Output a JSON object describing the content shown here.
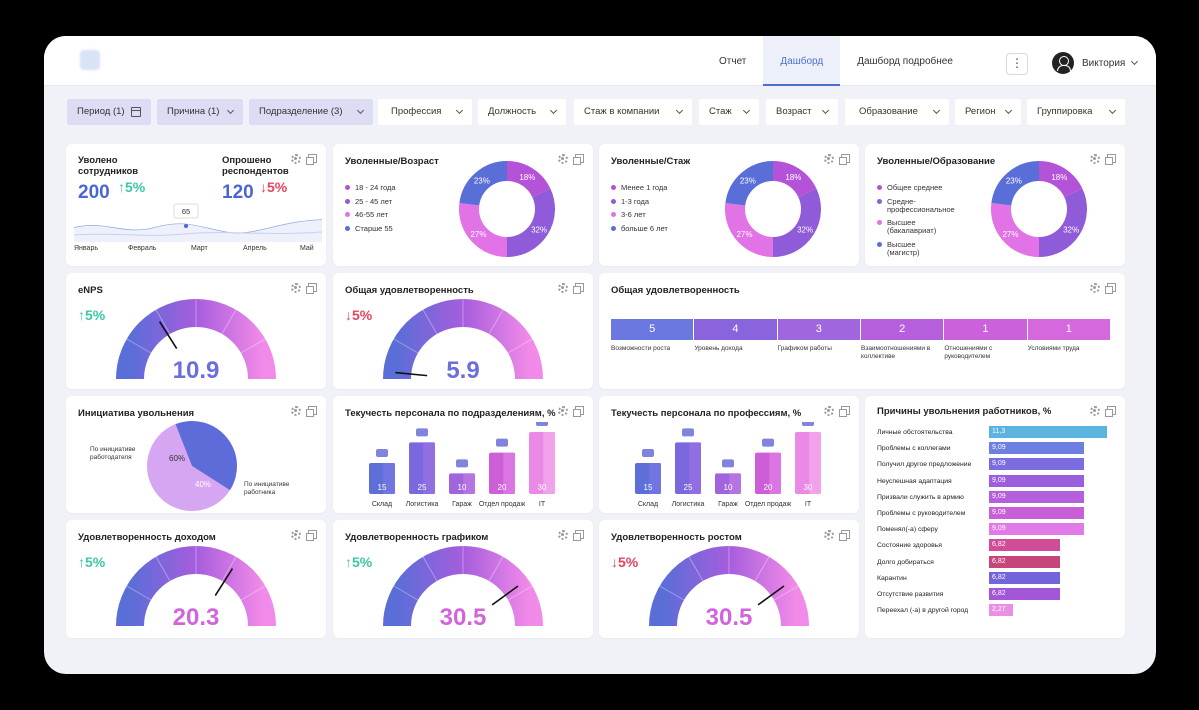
{
  "header": {
    "tabs": [
      {
        "label": "Отчет",
        "active": false
      },
      {
        "label": "Дашборд",
        "active": true
      },
      {
        "label": "Дашборд подробнее",
        "active": false
      }
    ],
    "more": "⋮",
    "user": "Виктория"
  },
  "filters": [
    {
      "label": "Период (1)",
      "selected": true,
      "icon": "calendar-icon"
    },
    {
      "label": "Причина (1)",
      "selected": true
    },
    {
      "label": "Подразделение (3)",
      "selected": true
    },
    {
      "label": "Профессия"
    },
    {
      "label": "Должность"
    },
    {
      "label": "Стаж в компании"
    },
    {
      "label": "Стаж"
    },
    {
      "label": "Возраст"
    },
    {
      "label": "Образование"
    },
    {
      "label": "Регион"
    },
    {
      "label": "Группировка"
    }
  ],
  "summary": {
    "left_title": "Уволено сотрудников",
    "left_value": "200",
    "left_trend": "5%",
    "right_title": "Опрошено респондентов",
    "right_value": "120",
    "right_trend": "5%",
    "point_label": "65",
    "months": [
      "Январь",
      "Февраль",
      "Март",
      "Апрель",
      "Май"
    ]
  },
  "donuts": [
    {
      "title": "Уволенные/Возраст",
      "legend": [
        "18 - 24 года",
        "25 - 45 лет",
        "46-55 лет",
        "Старше 55"
      ],
      "segments": [
        18,
        32,
        27,
        23
      ]
    },
    {
      "title": "Уволенные/Стаж",
      "legend": [
        "Менее 1 года",
        "1-3 года",
        "3-6 лет",
        "больше 6 лет"
      ],
      "segments": [
        18,
        32,
        27,
        23
      ]
    },
    {
      "title": "Уволенные/Образование",
      "legend": [
        "Общее среднее",
        "Средне-профессиональное",
        "Высшее (бакалавриат)",
        "Высшее (магистр)"
      ],
      "segments": [
        18,
        32,
        27,
        23
      ]
    }
  ],
  "colors": {
    "c1": "#b453d8",
    "c2": "#8f5bd9",
    "c3": "#e273e6",
    "c4": "#5a6ed8",
    "up": "#3dc7a5",
    "down": "#e7435c"
  },
  "gauges": [
    {
      "title": "eNPS",
      "trend": "5%",
      "dir": "up",
      "value": "10.9",
      "level": 0.32
    },
    {
      "title": "Общая удовлетворенность",
      "trend": "5%",
      "dir": "down",
      "value": "5.9",
      "level": 0.03
    },
    {
      "title": "Удовлетворенность доходом",
      "trend": "5%",
      "dir": "up",
      "value": "20.3",
      "level": 0.68
    },
    {
      "title": "Удовлетворенность графиком",
      "trend": "5%",
      "dir": "up",
      "value": "30.5",
      "level": 0.8
    },
    {
      "title": "Удовлетворенность ростом",
      "trend": "5%",
      "dir": "down",
      "value": "30.5",
      "level": 0.8
    }
  ],
  "satisfaction": {
    "title": "Общая удовлетворенность",
    "items": [
      {
        "value": "5",
        "label": "Возможности роста",
        "color": "#6b78e0"
      },
      {
        "value": "4",
        "label": "Уровень дохода",
        "color": "#8a64dc"
      },
      {
        "value": "3",
        "label": "Графиком работы",
        "color": "#a066dd"
      },
      {
        "value": "2",
        "label": "Взаимоотношениями в коллективе",
        "color": "#b65fdc"
      },
      {
        "value": "1",
        "label": "Отношениями с руководителем",
        "color": "#cb62dc"
      },
      {
        "value": "1",
        "label": "Условиями труда",
        "color": "#d568dd"
      }
    ]
  },
  "initiative": {
    "title": "Инициатива увольнения",
    "slices": [
      {
        "label": "По инициативе работодателя",
        "value": 60,
        "text": "60%",
        "color": "#d6a6f3"
      },
      {
        "label": "По инициативе работника",
        "value": 40,
        "text": "40%",
        "color": "#5d6cd8"
      }
    ]
  },
  "turnover": [
    {
      "title": "Текучесть персонала по подразделениям, %",
      "chart_data": {
        "type": "bar",
        "categories": [
          "Склад",
          "Логистика",
          "Гараж",
          "Отдел продаж",
          "IT"
        ],
        "values": [
          15,
          25,
          10,
          20,
          30
        ]
      }
    },
    {
      "title": "Текучесть персонала по профессиям, %",
      "chart_data": {
        "type": "bar",
        "categories": [
          "Склад",
          "Логистика",
          "Гараж",
          "Отдел продаж",
          "IT"
        ],
        "values": [
          15,
          25,
          10,
          20,
          30
        ]
      }
    }
  ],
  "reasons": {
    "title": "Причины увольнения работников, %",
    "chart_data": {
      "type": "bar",
      "categories": [
        "Личные обстоятельства",
        "Проблемы с коллегами",
        "Получил другое предложение",
        "Неуспешная адаптация",
        "Призвали служить в армию",
        "Проблемы с руководителем",
        "Поменял(-а) сферу",
        "Состояние здоровья",
        "Долго добираться",
        "Карантин",
        "Отсутствие развития",
        "Переехал (-а) в другой город"
      ],
      "values": [
        11.3,
        9.09,
        9.09,
        9.09,
        9.09,
        9.09,
        9.09,
        6.82,
        6.82,
        6.82,
        6.82,
        2.27
      ],
      "labels": [
        "11,3",
        "9,09",
        "9,09",
        "9,09",
        "9,09",
        "9,09",
        "9,09",
        "6,82",
        "6,82",
        "6,82",
        "6,82",
        "2,27"
      ],
      "colors": [
        "#5bb3e0",
        "#6d7fe0",
        "#7b6de0",
        "#9b5ede",
        "#b45fdc",
        "#c95fd6",
        "#df7ae6",
        "#d04c96",
        "#c5467a",
        "#7464dc",
        "#a357d8",
        "#ea8fe6"
      ]
    }
  }
}
